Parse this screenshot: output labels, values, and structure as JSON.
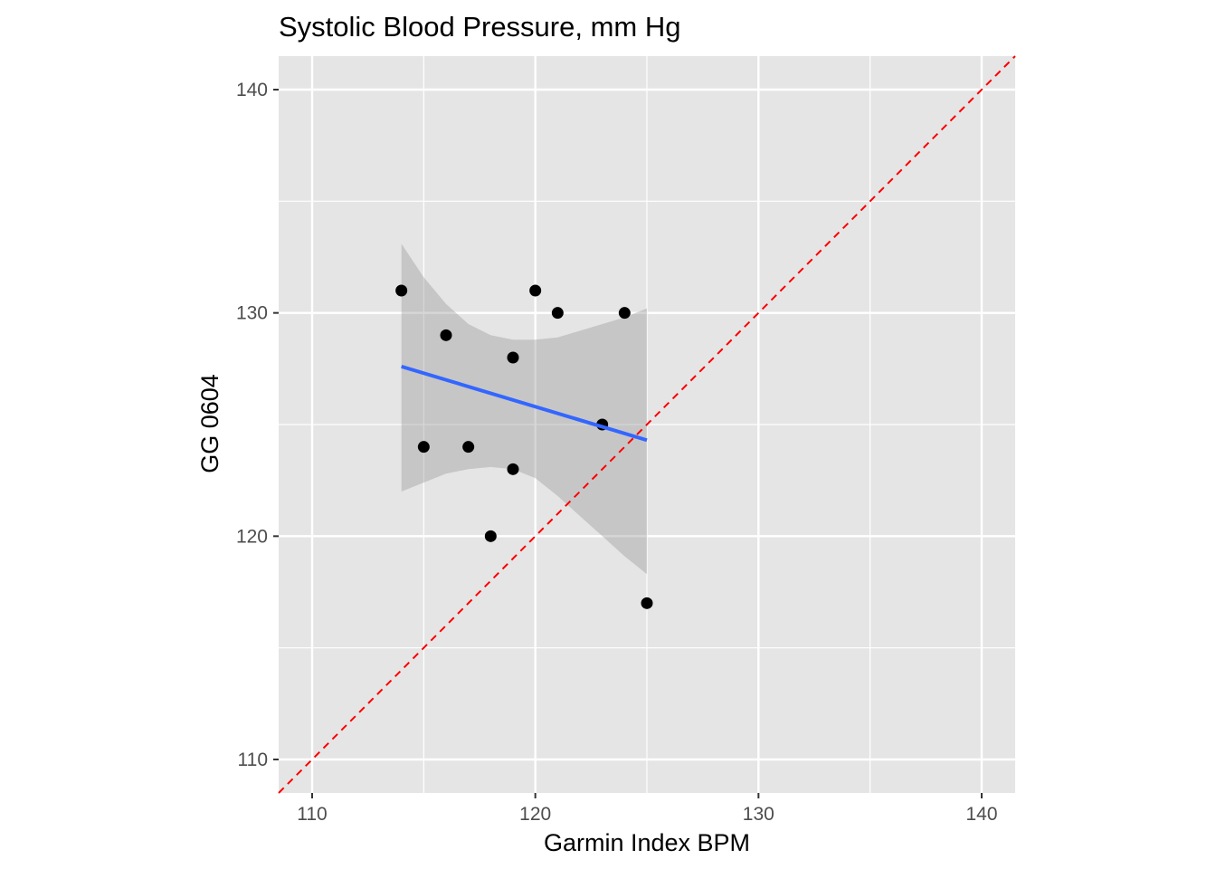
{
  "chart_data": {
    "type": "scatter",
    "title": "Systolic Blood Pressure, mm Hg",
    "xlabel": "Garmin Index BPM",
    "ylabel": "GG 0604",
    "xlim": [
      108.5,
      141.5
    ],
    "ylim": [
      108.5,
      141.5
    ],
    "x_ticks": [
      110,
      120,
      130,
      140
    ],
    "y_ticks": [
      110,
      120,
      130,
      140
    ],
    "x_tick_labels": [
      "110",
      "120",
      "130",
      "140"
    ],
    "y_tick_labels": [
      "110",
      "120",
      "130",
      "140"
    ],
    "x_minor": [
      115,
      125,
      135
    ],
    "y_minor": [
      115,
      125,
      135
    ],
    "grid": true,
    "points": [
      {
        "x": 114,
        "y": 131
      },
      {
        "x": 115,
        "y": 124
      },
      {
        "x": 116,
        "y": 129
      },
      {
        "x": 117,
        "y": 124
      },
      {
        "x": 118,
        "y": 120
      },
      {
        "x": 119,
        "y": 128
      },
      {
        "x": 119,
        "y": 123
      },
      {
        "x": 120,
        "y": 131
      },
      {
        "x": 121,
        "y": 130
      },
      {
        "x": 123,
        "y": 125
      },
      {
        "x": 124,
        "y": 130
      },
      {
        "x": 125,
        "y": 117
      }
    ],
    "regression_line": {
      "x": [
        114,
        125
      ],
      "y": [
        127.6,
        124.3
      ]
    },
    "confidence_band": {
      "x": [
        114,
        115,
        116,
        117,
        118,
        119,
        120,
        121,
        122,
        123,
        124,
        125
      ],
      "upper": [
        133.1,
        131.6,
        130.4,
        129.5,
        129.0,
        128.8,
        128.8,
        128.9,
        129.2,
        129.5,
        129.8,
        130.2
      ],
      "lower": [
        122.0,
        122.4,
        122.8,
        123.0,
        123.1,
        123.0,
        122.6,
        121.8,
        120.9,
        120.0,
        119.1,
        118.3
      ]
    },
    "identity_line": {
      "label": "",
      "x": [
        108.5,
        141.5
      ],
      "y": [
        108.5,
        141.5
      ]
    },
    "colors": {
      "panel": "#e5e5e5",
      "grid": "#ffffff",
      "points": "#000000",
      "regression": "#3366ff",
      "band": "#999999",
      "identity": "#ff0000",
      "tick_label": "#4d4d4d"
    }
  }
}
